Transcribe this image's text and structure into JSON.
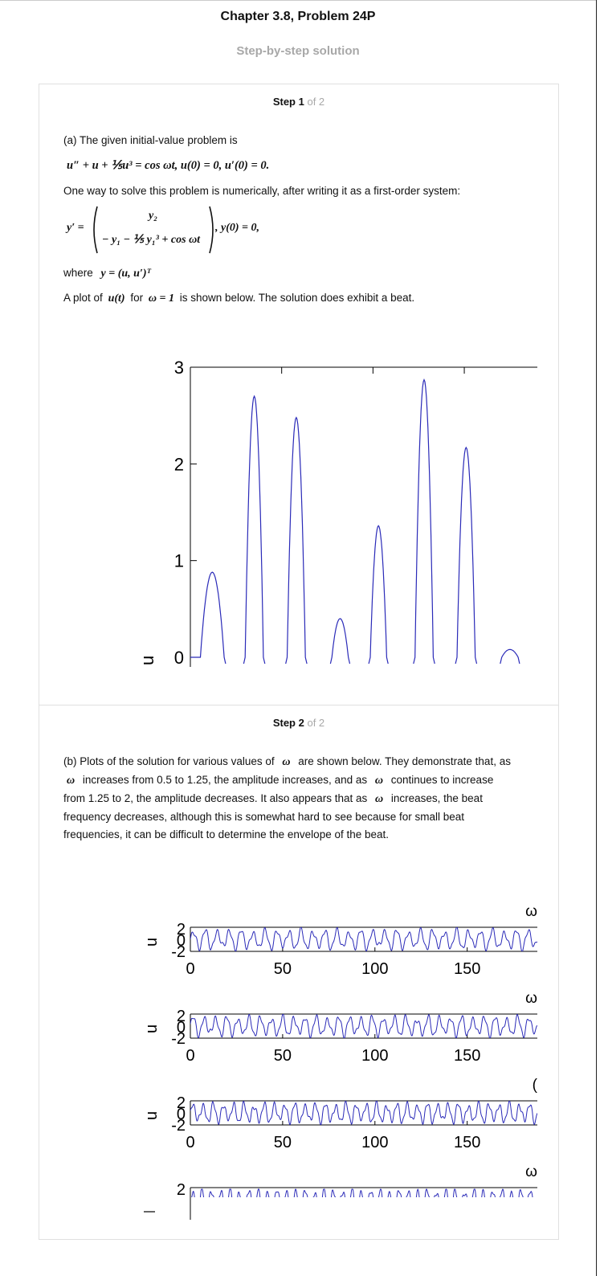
{
  "header": {
    "title": "Chapter 3.8, Problem 24P",
    "subtitle": "Step-by-step solution"
  },
  "step1": {
    "label": "Step 1",
    "of": "of 2",
    "intro": "(a) The given initial-value problem is",
    "equation": "u″ + u + ⅕u³ = cos ωt,   u(0) = 0,   u′(0) = 0.",
    "system_intro": "One way to solve this problem is numerically, after writing it as a first-order system:",
    "sys_lhs": "y′ =",
    "sys_row1": "y₂",
    "sys_row2": "− y₁ − ⅕ y₁³ + cos ωt",
    "sys_ic": ",   y(0) = 0,",
    "where_label": "where",
    "where_expr": "y = (u, u′)ᵀ",
    "plot_text_pre": "A plot of",
    "plot_text_u": "u(t)",
    "plot_text_for": "for",
    "plot_text_omega": "ω = 1",
    "plot_text_post": "is shown below. The solution does exhibit a beat."
  },
  "step2": {
    "label": "Step 2",
    "of": "of 2",
    "p1_a": "(b) Plots of the solution for various values of",
    "p1_b": "are shown below. They demonstrate that, as",
    "p2_b": "increases from 0.5 to 1.25, the amplitude increases, and as",
    "p2_c": "continues to increase",
    "p3_a": "from 1.25 to 2, the amplitude decreases. It also appears that as",
    "p3_b": "increases, the beat",
    "p4": "frequency decreases, although this is somewhat hard to see because for small beat",
    "p5": "frequencies, it can be difficult to determine the envelope of the beat.",
    "omega": "ω"
  },
  "chart_data": [
    {
      "type": "line",
      "title": "",
      "xlabel": "",
      "ylabel": "u",
      "ylim": [
        0,
        3
      ],
      "yticks": [
        "0",
        "1",
        "2",
        "3"
      ],
      "peaks": [
        {
          "t": 12,
          "u": 0.88
        },
        {
          "t": 35,
          "u": 2.7
        },
        {
          "t": 58,
          "u": 2.48
        },
        {
          "t": 82,
          "u": 0.4
        },
        {
          "t": 103,
          "u": 1.36
        },
        {
          "t": 128,
          "u": 2.87
        },
        {
          "t": 151,
          "u": 2.17
        },
        {
          "t": 175,
          "u": 0.08
        }
      ]
    },
    {
      "type": "line",
      "title_partial": "ω",
      "ylabel": "u",
      "ylim": [
        -2,
        2
      ],
      "yticks": [
        "2",
        "0",
        "-2"
      ],
      "xticks": [
        "0",
        "50",
        "100",
        "150"
      ],
      "cycles": 29
    },
    {
      "type": "line",
      "title_partial": "ω",
      "ylabel": "u",
      "ylim": [
        -2,
        2
      ],
      "yticks": [
        "2",
        "0",
        "-2"
      ],
      "xticks": [
        "0",
        "50",
        "100",
        "150"
      ],
      "cycles": 31
    },
    {
      "type": "line",
      "title_partial": "(",
      "ylabel": "u",
      "ylim": [
        -2,
        2
      ],
      "yticks": [
        "2",
        "0",
        "-2"
      ],
      "xticks": [
        "0",
        "50",
        "100",
        "150"
      ],
      "cycles": 34
    },
    {
      "type": "line",
      "title_partial": "ω",
      "ylabel": "",
      "ylim": [
        -2,
        2
      ],
      "yticks": [
        "2"
      ],
      "cycles": 37
    }
  ]
}
